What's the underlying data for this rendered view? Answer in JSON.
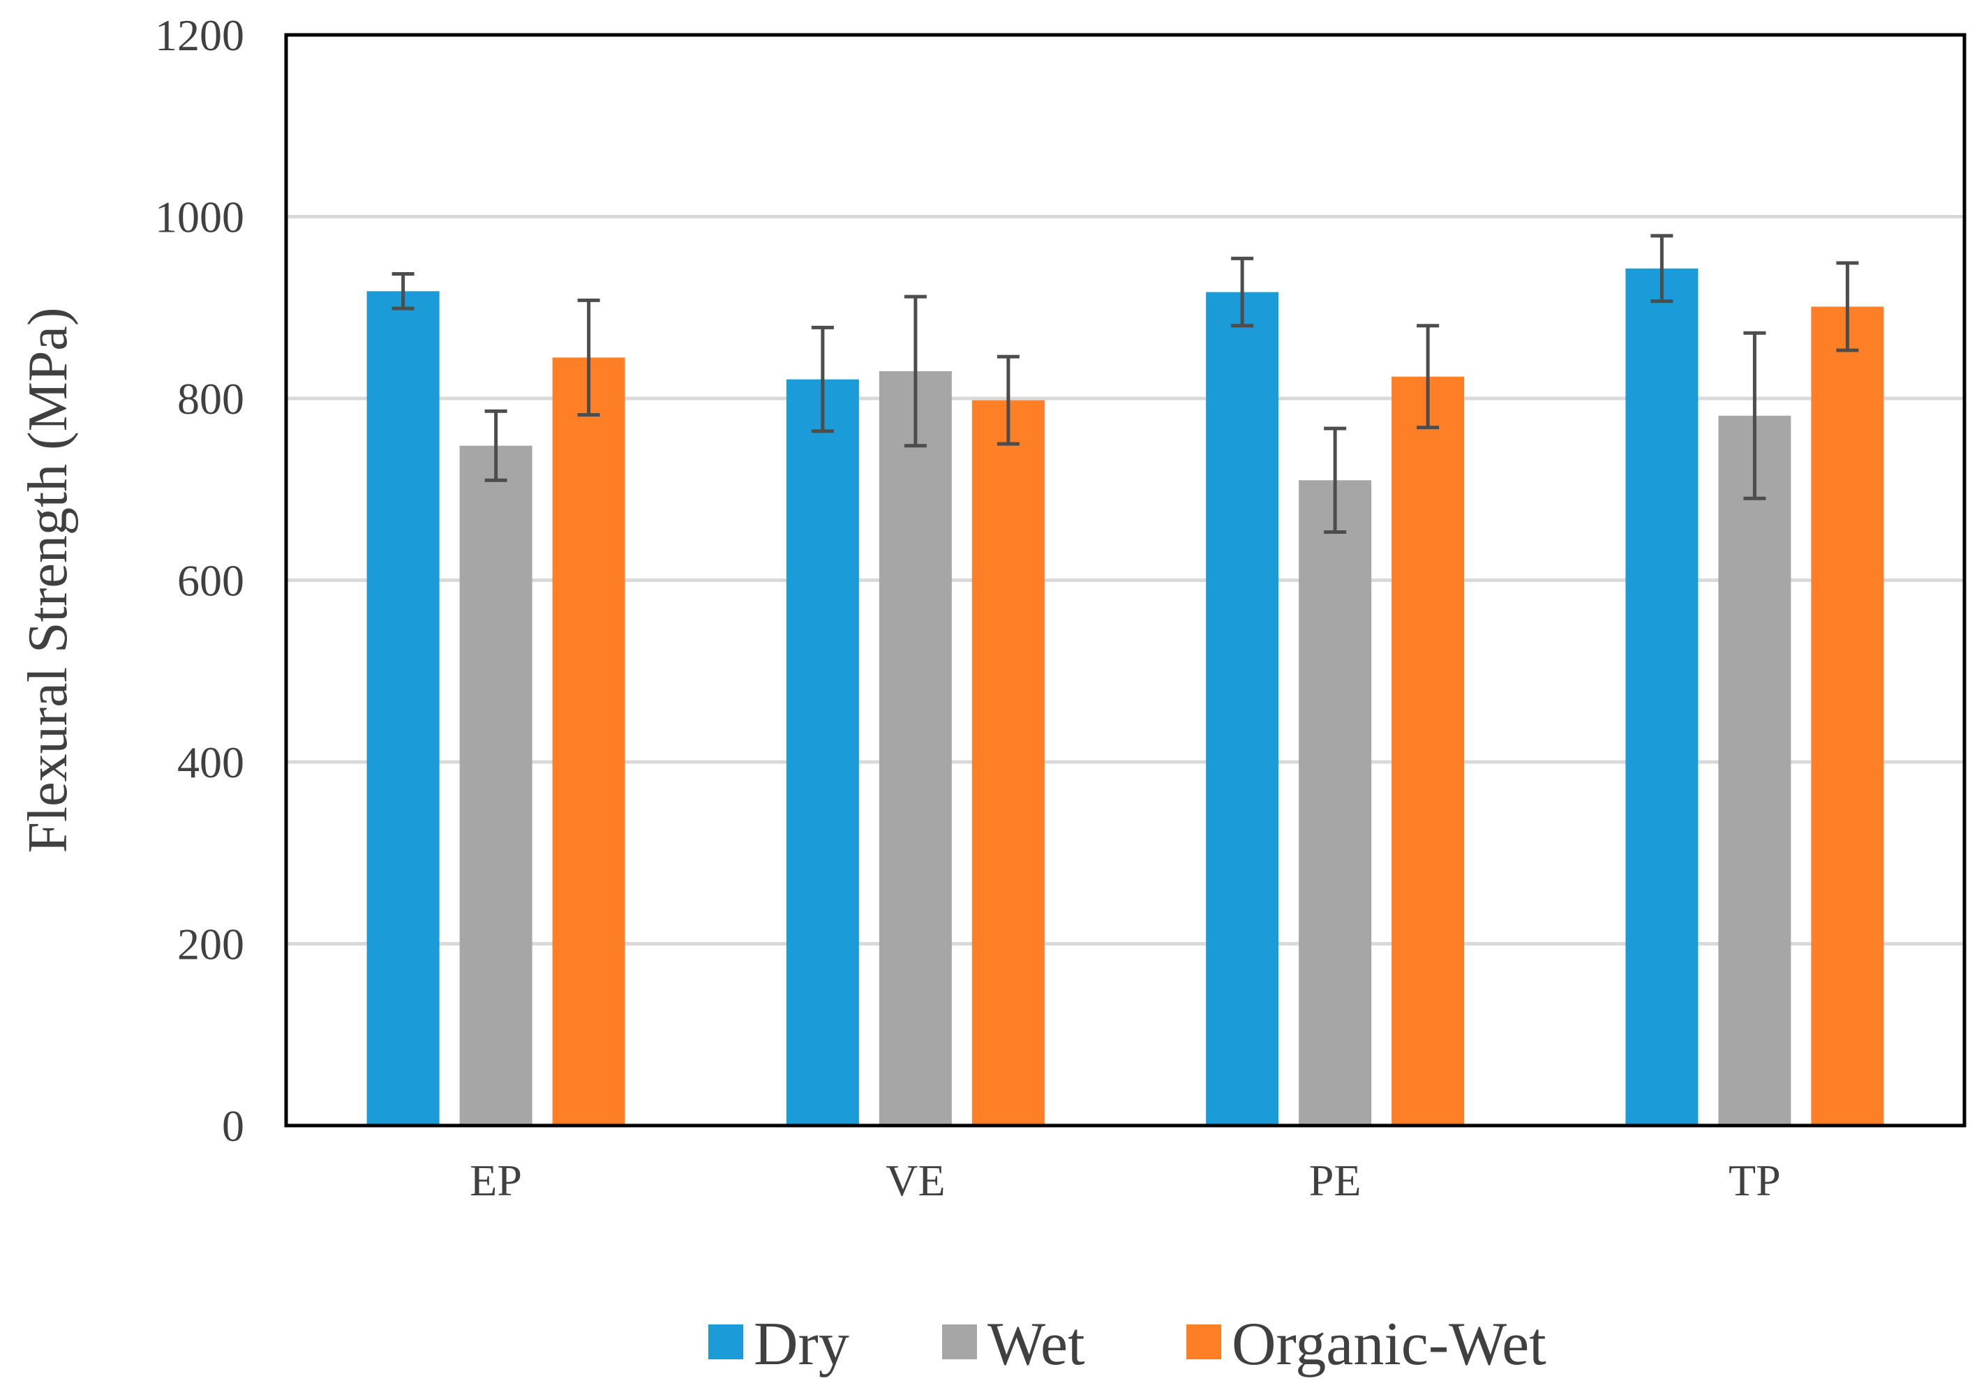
{
  "chart_data": {
    "type": "bar",
    "title": "",
    "xlabel": "",
    "ylabel": "Flexural Strength (MPa)",
    "ylim": [
      0,
      1200
    ],
    "yticks": [
      0,
      200,
      400,
      600,
      800,
      1000,
      1200
    ],
    "grid": true,
    "legend_position": "bottom",
    "categories": [
      "EP",
      "VE",
      "PE",
      "TP"
    ],
    "series": [
      {
        "name": "Dry",
        "color": "#1B9BD7",
        "values": [
          918,
          821,
          917,
          943
        ],
        "error": [
          19,
          57,
          37,
          36
        ]
      },
      {
        "name": "Wet",
        "color": "#A6A6A6",
        "values": [
          748,
          830,
          710,
          781
        ],
        "error": [
          38,
          82,
          57,
          91
        ]
      },
      {
        "name": "Organic-Wet",
        "color": "#FF7F27",
        "values": [
          845,
          798,
          824,
          901
        ],
        "error": [
          63,
          48,
          56,
          48
        ]
      }
    ]
  },
  "style": {
    "error_bar_color": "#4D4D4D",
    "grid_color": "#D9D9D9",
    "frame_color": "#000000"
  }
}
